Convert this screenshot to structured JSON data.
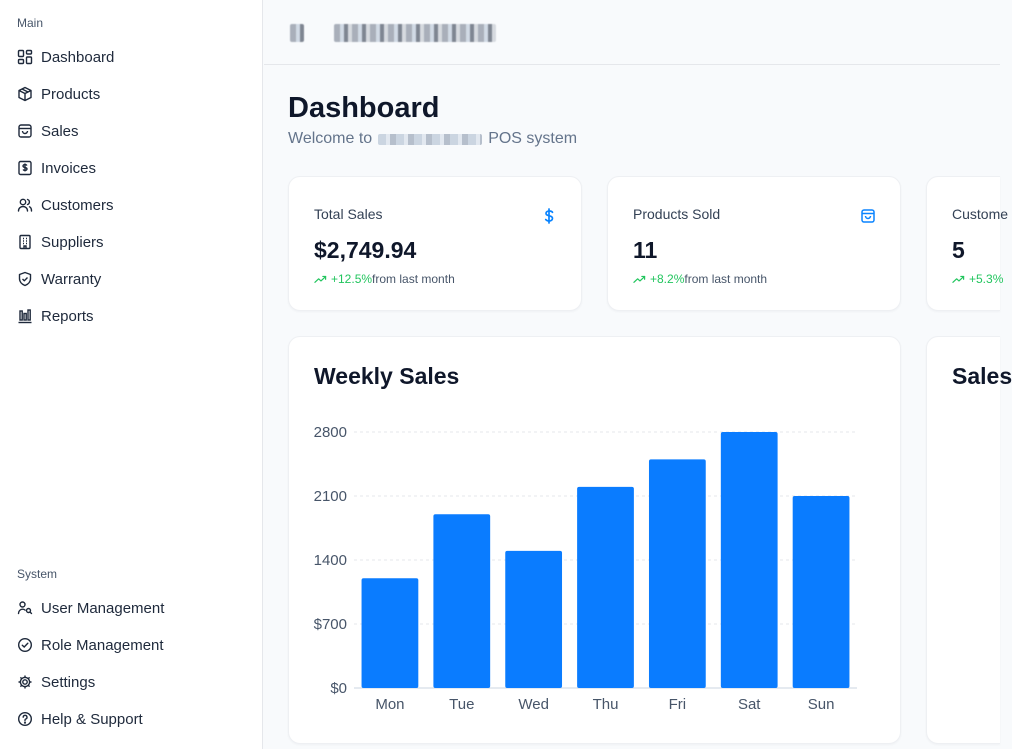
{
  "sidebar": {
    "main_label": "Main",
    "main_items": [
      {
        "label": "Dashboard",
        "icon": "dashboard-grid-icon"
      },
      {
        "label": "Products",
        "icon": "package-icon"
      },
      {
        "label": "Sales",
        "icon": "shopping-bag-icon"
      },
      {
        "label": "Invoices",
        "icon": "invoice-dollar-icon"
      },
      {
        "label": "Customers",
        "icon": "users-icon"
      },
      {
        "label": "Suppliers",
        "icon": "building-icon"
      },
      {
        "label": "Warranty",
        "icon": "shield-check-icon"
      },
      {
        "label": "Reports",
        "icon": "bar-chart-icon"
      }
    ],
    "system_label": "System",
    "system_items": [
      {
        "label": "User Management",
        "icon": "user-key-icon"
      },
      {
        "label": "Role Management",
        "icon": "check-circle-icon"
      },
      {
        "label": "Settings",
        "icon": "gear-icon"
      },
      {
        "label": "Help & Support",
        "icon": "help-circle-icon"
      }
    ]
  },
  "header": {
    "title": "Dashboard",
    "welcome_prefix": "Welcome to",
    "welcome_suffix": "POS system"
  },
  "stats": [
    {
      "label": "Total Sales",
      "value": "$2,749.94",
      "trend": "+12.5%",
      "trend_suffix": "from last month",
      "icon": "dollar-icon"
    },
    {
      "label": "Products Sold",
      "value": "11",
      "trend": "+8.2%",
      "trend_suffix": "from last month",
      "icon": "shopping-bag-icon"
    },
    {
      "label": "Custome",
      "value": "5",
      "trend": "+5.3%",
      "trend_suffix": "",
      "icon": ""
    }
  ],
  "colors": {
    "accent": "#0a7cff",
    "trend_up": "#22c55e",
    "icon_blue": "#0a84ff"
  },
  "weekly_chart": {
    "title": "Weekly Sales"
  },
  "side_chart": {
    "title": "Sales"
  },
  "chart_data": {
    "type": "bar",
    "categories": [
      "Mon",
      "Tue",
      "Wed",
      "Thu",
      "Fri",
      "Sat",
      "Sun"
    ],
    "values": [
      1200,
      1900,
      1500,
      2200,
      2500,
      2800,
      2100
    ],
    "title": "Weekly Sales",
    "xlabel": "",
    "ylabel": "",
    "ylim": [
      0,
      2800
    ],
    "yticks": [
      "$0",
      "$700",
      "1400",
      "2100",
      "2800"
    ],
    "ytick_values": [
      0,
      700,
      1400,
      2100,
      2800
    ],
    "grid": true,
    "color": "#0a7cff"
  }
}
